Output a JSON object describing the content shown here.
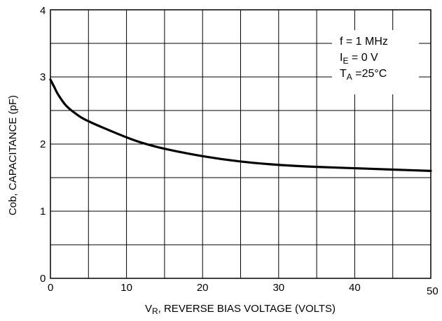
{
  "chart_data": {
    "type": "line",
    "xlabel": "V_R, REVERSE BIAS VOLTAGE (VOLTS)",
    "xlabel_parts": {
      "v": "V",
      "sub": "R",
      "rest": ", REVERSE BIAS VOLTAGE (VOLTS)"
    },
    "ylabel": "Cob, CAPACITANCE (pF)",
    "xlim": [
      0,
      50
    ],
    "ylim": [
      0,
      4
    ],
    "x_ticks": [
      "0",
      "10",
      "20",
      "30",
      "40",
      "50"
    ],
    "y_ticks": [
      "0",
      "1",
      "2",
      "3",
      "4"
    ],
    "grid": true,
    "conditions": [
      {
        "main": "f = 1 MHz",
        "sub": "",
        "rest": ""
      },
      {
        "main": "I",
        "sub": "E",
        "rest": " = 0 V"
      },
      {
        "main": "T",
        "sub": "A",
        "rest": " =25°C"
      }
    ],
    "legend_position": "top-right",
    "series": [
      {
        "x": [
          0,
          0.5,
          1,
          2,
          3,
          4,
          5,
          7,
          10,
          12,
          15,
          20,
          25,
          30,
          35,
          40,
          45,
          50
        ],
        "y": [
          2.96,
          2.85,
          2.74,
          2.58,
          2.48,
          2.4,
          2.34,
          2.24,
          2.1,
          2.02,
          1.93,
          1.82,
          1.74,
          1.69,
          1.66,
          1.64,
          1.62,
          1.6
        ]
      }
    ]
  }
}
